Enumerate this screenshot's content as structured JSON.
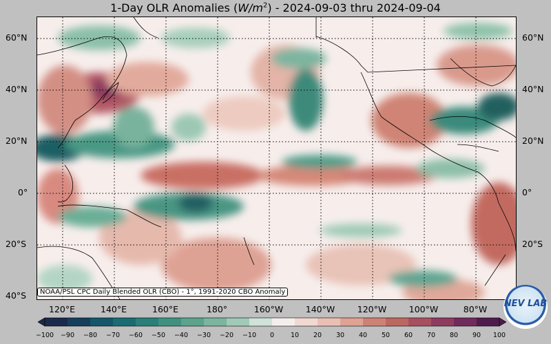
{
  "title": {
    "prefix": "1-Day OLR Anomalies (",
    "unit_base": "W/m",
    "unit_exp": "2",
    "suffix": ") - 2024-09-03 thru 2024-09-04"
  },
  "lat_labels": [
    "60°N",
    "40°N",
    "20°N",
    "0°",
    "20°S",
    "40°S"
  ],
  "lon_labels": [
    "120°E",
    "140°E",
    "160°E",
    "180°",
    "160°W",
    "140°W",
    "120°W",
    "100°W",
    "80°W"
  ],
  "credit": "NOAA/PSL CPC Daily Blended OLR (CBO) - 1°, 1991-2020 CBO Anomaly",
  "colorbar": {
    "ticks": [
      "−100",
      "−90",
      "−80",
      "−70",
      "−60",
      "−50",
      "−40",
      "−30",
      "−20",
      "−10",
      "0",
      "10",
      "20",
      "30",
      "40",
      "50",
      "60",
      "70",
      "80",
      "90",
      "100"
    ],
    "colors": [
      "#1a2a4a",
      "#173e5c",
      "#15566a",
      "#1b6b72",
      "#2a7f78",
      "#3f917f",
      "#5ba38d",
      "#7bb59f",
      "#a1cab6",
      "#cfe3d8",
      "#f4eeec",
      "#f1d9d2",
      "#eabfb3",
      "#dfa293",
      "#cf8274",
      "#bc6760",
      "#a85060",
      "#8f3b60",
      "#712a5c",
      "#4e1c4c"
    ],
    "vmin": -100,
    "vmax": 100
  },
  "logo": {
    "text": "NEV LAB"
  },
  "map": {
    "lat_range": [
      -40,
      70
    ],
    "lon_range": [
      105,
      290
    ]
  }
}
